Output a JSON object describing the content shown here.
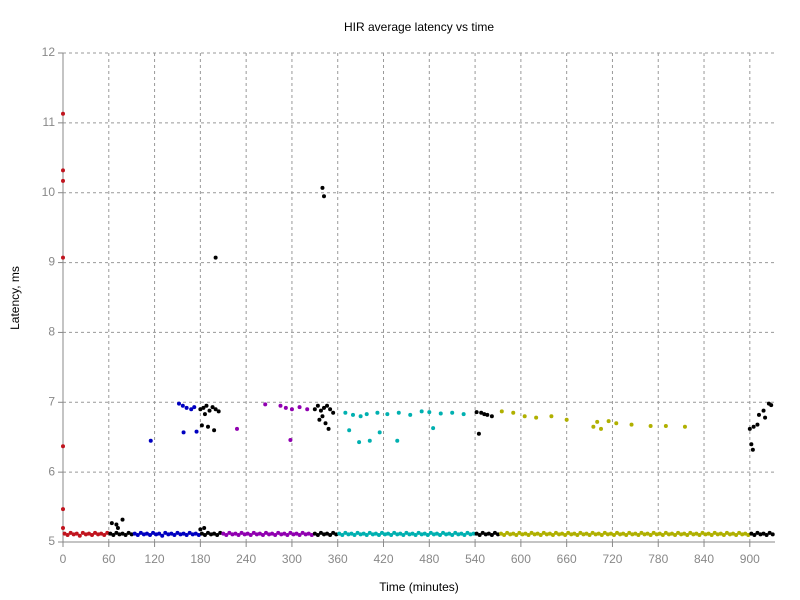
{
  "chart_data": {
    "type": "scatter",
    "title": "HIR average latency vs time",
    "x_label": "Time (minutes)",
    "y_label": "Latency, ms",
    "xlim": [
      0,
      933
    ],
    "ylim": [
      5,
      12
    ],
    "xticks": [
      0,
      60,
      120,
      180,
      240,
      300,
      360,
      420,
      480,
      540,
      600,
      660,
      720,
      780,
      840,
      900
    ],
    "yticks": [
      5,
      6,
      7,
      8,
      9,
      10,
      11,
      12
    ],
    "grid": true,
    "series": [
      {
        "color": "#c0141e",
        "x": [
          0,
          0,
          0,
          0,
          0,
          0,
          0,
          2,
          6,
          10,
          14,
          18,
          22,
          26,
          30,
          34,
          38,
          42,
          46,
          50,
          54,
          58
        ],
        "y": [
          11.13,
          10.32,
          10.17,
          9.07,
          6.37,
          5.47,
          5.2,
          5.12,
          5.1,
          5.13,
          5.11,
          5.12,
          5.09,
          5.13,
          5.11,
          5.12,
          5.1,
          5.13,
          5.11,
          5.12,
          5.1,
          5.13
        ]
      },
      {
        "color": "#000000",
        "x": [
          62,
          66,
          70,
          74,
          78,
          82,
          86,
          90,
          64,
          70,
          78,
          72
        ],
        "y": [
          5.12,
          5.1,
          5.13,
          5.11,
          5.12,
          5.1,
          5.13,
          5.11,
          5.27,
          5.25,
          5.32,
          5.2
        ]
      },
      {
        "color": "#0000c0",
        "x": [
          94,
          98,
          102,
          106,
          110,
          114,
          118,
          122,
          126,
          130,
          134,
          138,
          142,
          146,
          150,
          154,
          158,
          162,
          166,
          170,
          174,
          178,
          115,
          152,
          157,
          162,
          168,
          172,
          158,
          175
        ],
        "y": [
          5.12,
          5.1,
          5.13,
          5.11,
          5.12,
          5.1,
          5.13,
          5.11,
          5.12,
          5.09,
          5.13,
          5.11,
          5.12,
          5.1,
          5.13,
          5.11,
          5.12,
          5.1,
          5.13,
          5.11,
          5.12,
          5.1,
          6.45,
          6.98,
          6.95,
          6.92,
          6.9,
          6.93,
          6.57,
          6.58
        ]
      },
      {
        "color": "#000000",
        "x": [
          182,
          186,
          190,
          194,
          198,
          202,
          206,
          180,
          184,
          188,
          192,
          196,
          200,
          204,
          186,
          182,
          190,
          198,
          200,
          180,
          185
        ],
        "y": [
          5.12,
          5.1,
          5.13,
          5.11,
          5.12,
          5.1,
          5.13,
          6.9,
          6.92,
          6.95,
          6.88,
          6.93,
          6.9,
          6.87,
          6.83,
          6.67,
          6.65,
          6.6,
          9.07,
          5.18,
          5.2
        ]
      },
      {
        "color": "#9000b0",
        "x": [
          210,
          214,
          218,
          222,
          226,
          230,
          234,
          238,
          242,
          246,
          250,
          254,
          258,
          262,
          266,
          270,
          274,
          278,
          282,
          286,
          290,
          294,
          298,
          302,
          306,
          310,
          314,
          318,
          322,
          326,
          228,
          265,
          285,
          292,
          300,
          298,
          310,
          320
        ],
        "y": [
          5.12,
          5.1,
          5.13,
          5.11,
          5.12,
          5.1,
          5.13,
          5.11,
          5.12,
          5.1,
          5.13,
          5.11,
          5.12,
          5.1,
          5.13,
          5.11,
          5.12,
          5.1,
          5.13,
          5.11,
          5.12,
          5.1,
          5.13,
          5.11,
          5.12,
          5.1,
          5.13,
          5.11,
          5.12,
          5.1,
          6.62,
          6.97,
          6.95,
          6.92,
          6.9,
          6.46,
          6.93,
          6.9
        ]
      },
      {
        "color": "#000000",
        "x": [
          330,
          334,
          338,
          342,
          346,
          350,
          354,
          358,
          340,
          342,
          330,
          334,
          338,
          342,
          346,
          350,
          354,
          336,
          344,
          348,
          340
        ],
        "y": [
          5.12,
          5.1,
          5.13,
          5.11,
          5.12,
          5.1,
          5.13,
          5.11,
          10.07,
          9.95,
          6.9,
          6.95,
          6.88,
          6.92,
          6.95,
          6.9,
          6.85,
          6.75,
          6.7,
          6.62,
          6.8
        ]
      },
      {
        "color": "#00b0b0",
        "x": [
          362,
          366,
          370,
          374,
          378,
          382,
          386,
          390,
          394,
          398,
          402,
          406,
          410,
          414,
          418,
          422,
          426,
          430,
          434,
          438,
          442,
          446,
          450,
          454,
          458,
          462,
          466,
          470,
          474,
          478,
          482,
          486,
          490,
          494,
          498,
          502,
          506,
          510,
          514,
          518,
          522,
          526,
          530,
          534,
          538,
          370,
          380,
          390,
          398,
          412,
          425,
          440,
          455,
          470,
          480,
          495,
          510,
          525,
          375,
          388,
          402,
          415,
          438,
          485
        ],
        "y": [
          5.12,
          5.1,
          5.13,
          5.11,
          5.12,
          5.1,
          5.13,
          5.11,
          5.12,
          5.1,
          5.13,
          5.11,
          5.12,
          5.1,
          5.13,
          5.11,
          5.12,
          5.1,
          5.13,
          5.11,
          5.12,
          5.1,
          5.13,
          5.11,
          5.12,
          5.1,
          5.13,
          5.11,
          5.12,
          5.1,
          5.13,
          5.11,
          5.12,
          5.1,
          5.13,
          5.11,
          5.12,
          5.1,
          5.13,
          5.11,
          5.12,
          5.1,
          5.13,
          5.11,
          5.12,
          6.85,
          6.82,
          6.8,
          6.83,
          6.85,
          6.83,
          6.85,
          6.82,
          6.87,
          6.86,
          6.84,
          6.85,
          6.83,
          6.6,
          6.43,
          6.45,
          6.57,
          6.45,
          6.63
        ]
      },
      {
        "color": "#000000",
        "x": [
          542,
          546,
          550,
          554,
          558,
          562,
          566,
          570,
          542,
          548,
          552,
          556,
          562,
          545
        ],
        "y": [
          5.12,
          5.1,
          5.13,
          5.11,
          5.12,
          5.1,
          5.13,
          5.11,
          6.86,
          6.85,
          6.83,
          6.82,
          6.8,
          6.55
        ]
      },
      {
        "color": "#b0b000",
        "x": [
          574,
          578,
          582,
          586,
          590,
          594,
          598,
          602,
          606,
          610,
          614,
          618,
          622,
          626,
          630,
          634,
          638,
          642,
          646,
          650,
          654,
          658,
          662,
          666,
          670,
          674,
          678,
          682,
          686,
          690,
          694,
          698,
          702,
          706,
          710,
          714,
          718,
          722,
          726,
          730,
          734,
          738,
          742,
          746,
          750,
          754,
          758,
          762,
          766,
          770,
          774,
          778,
          782,
          786,
          790,
          794,
          798,
          802,
          806,
          810,
          814,
          818,
          822,
          826,
          830,
          834,
          838,
          842,
          846,
          850,
          854,
          858,
          862,
          866,
          870,
          874,
          878,
          882,
          886,
          890,
          894,
          898,
          575,
          590,
          605,
          620,
          640,
          660,
          700,
          715,
          725,
          745,
          770,
          790,
          815,
          695,
          705
        ],
        "y": [
          5.12,
          5.1,
          5.13,
          5.11,
          5.12,
          5.1,
          5.13,
          5.11,
          5.12,
          5.1,
          5.13,
          5.11,
          5.12,
          5.1,
          5.13,
          5.11,
          5.12,
          5.1,
          5.13,
          5.11,
          5.12,
          5.1,
          5.13,
          5.11,
          5.12,
          5.1,
          5.13,
          5.11,
          5.12,
          5.1,
          5.13,
          5.11,
          5.12,
          5.1,
          5.13,
          5.11,
          5.12,
          5.1,
          5.13,
          5.11,
          5.12,
          5.1,
          5.13,
          5.11,
          5.12,
          5.1,
          5.13,
          5.11,
          5.12,
          5.1,
          5.13,
          5.11,
          5.12,
          5.1,
          5.13,
          5.11,
          5.12,
          5.1,
          5.13,
          5.11,
          5.12,
          5.1,
          5.13,
          5.11,
          5.12,
          5.1,
          5.13,
          5.11,
          5.12,
          5.1,
          5.13,
          5.11,
          5.12,
          5.1,
          5.13,
          5.11,
          5.12,
          5.1,
          5.13,
          5.11,
          5.12,
          5.1,
          6.87,
          6.85,
          6.8,
          6.78,
          6.8,
          6.75,
          6.72,
          6.73,
          6.7,
          6.68,
          6.66,
          6.66,
          6.65,
          6.65,
          6.62
        ]
      },
      {
        "color": "#000000",
        "x": [
          902,
          906,
          910,
          914,
          918,
          922,
          926,
          930,
          900,
          905,
          910,
          902,
          904,
          912,
          920,
          925,
          928,
          918
        ],
        "y": [
          5.12,
          5.1,
          5.13,
          5.11,
          5.12,
          5.1,
          5.13,
          5.11,
          6.62,
          6.65,
          6.68,
          6.4,
          6.32,
          6.82,
          6.78,
          6.98,
          6.96,
          6.88
        ]
      }
    ]
  }
}
